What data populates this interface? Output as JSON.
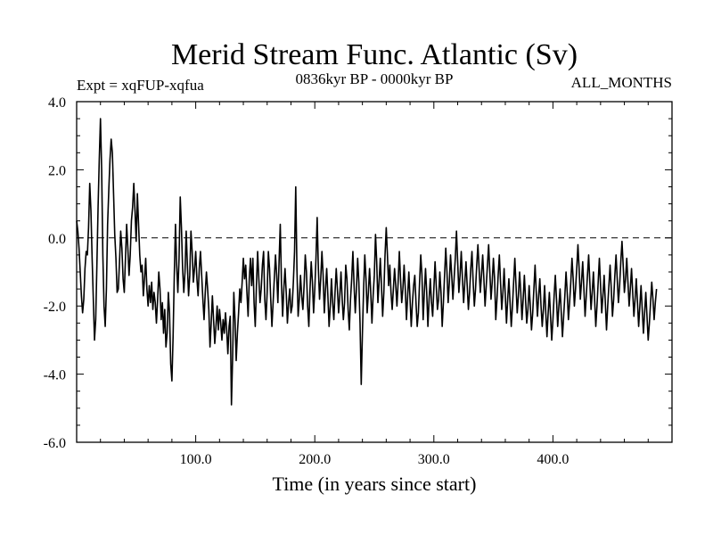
{
  "chart_data": {
    "type": "line",
    "title": "Merid Stream Func. Atlantic (Sv)",
    "subtitle_left": "Expt = xqFUP-xqfua",
    "subtitle_center": "0836kyr BP - 0000kyr BP",
    "subtitle_right": "ALL_MONTHS",
    "xlabel": "Time (in years since start)",
    "ylabel": "",
    "xlim": [
      0,
      500
    ],
    "ylim": [
      -6.0,
      4.0
    ],
    "x_ticks": [
      100,
      200,
      300,
      400
    ],
    "x_tick_labels": [
      "100.0",
      "200.0",
      "300.0",
      "400.0"
    ],
    "y_ticks": [
      -6,
      -4,
      -2,
      0,
      2,
      4
    ],
    "y_tick_labels": [
      "-6.0",
      "-4.0",
      "-2.0",
      "0.0",
      "2.0",
      "4.0"
    ],
    "reference_line": {
      "y": 0.0,
      "style": "dashed"
    },
    "grid": false,
    "series": [
      {
        "name": "Merid Stream Func. Atlantic",
        "color": "#000000",
        "x_start": 0,
        "x_step": 1,
        "values": [
          0.5,
          0.2,
          -0.3,
          -1.0,
          -1.7,
          -2.2,
          -1.8,
          -0.9,
          -0.4,
          -0.5,
          0.3,
          1.6,
          0.8,
          -0.6,
          -1.8,
          -3.0,
          -2.4,
          -0.8,
          0.9,
          2.3,
          3.5,
          2.0,
          -0.5,
          -2.0,
          -2.6,
          -1.5,
          0.4,
          1.4,
          2.3,
          2.9,
          2.5,
          1.3,
          0.1,
          -0.6,
          -1.6,
          -1.5,
          -0.7,
          0.2,
          -0.3,
          -1.2,
          -1.6,
          -0.6,
          0.4,
          -0.3,
          -1.1,
          -0.5,
          0.5,
          0.9,
          1.6,
          0.8,
          -0.1,
          1.3,
          0.4,
          -0.5,
          -1.0,
          -0.8,
          -1.7,
          -1.2,
          -0.6,
          -1.5,
          -2.0,
          -1.4,
          -1.9,
          -1.3,
          -2.1,
          -1.6,
          -1.9,
          -2.5,
          -1.8,
          -1.0,
          -1.5,
          -2.4,
          -1.9,
          -2.8,
          -2.1,
          -3.2,
          -2.8,
          -1.6,
          -2.2,
          -3.7,
          -4.2,
          -2.9,
          -1.1,
          0.4,
          -0.8,
          -1.6,
          -0.6,
          1.2,
          0.3,
          -0.9,
          -1.6,
          -1.0,
          0.2,
          -0.8,
          -1.7,
          -1.1,
          0.2,
          -0.4,
          -1.3,
          -0.9,
          -0.4,
          -1.2,
          -1.7,
          -0.9,
          -0.4,
          -1.1,
          -1.8,
          -2.4,
          -1.6,
          -1.0,
          -1.5,
          -2.1,
          -3.2,
          -2.5,
          -1.7,
          -2.4,
          -3.1,
          -2.6,
          -2.0,
          -2.7,
          -2.1,
          -2.5,
          -3.0,
          -2.4,
          -2.8,
          -2.2,
          -2.7,
          -3.4,
          -2.6,
          -2.3,
          -4.9,
          -3.5,
          -1.6,
          -2.4,
          -3.6,
          -2.8,
          -2.2,
          -1.5,
          -1.9,
          -1.3,
          -0.6,
          -1.2,
          -0.8,
          -1.6,
          -2.3,
          -1.2,
          -0.6,
          -1.4,
          -0.6,
          -1.9,
          -2.6,
          -1.4,
          -0.4,
          -1.2,
          -1.9,
          -1.5,
          -0.8,
          -0.4,
          -1.8,
          -2.4,
          -1.6,
          -0.4,
          -0.9,
          -1.8,
          -2.6,
          -1.9,
          -1.2,
          -0.5,
          -1.1,
          -1.9,
          -0.7,
          0.4,
          -1.3,
          -2.3,
          -1.5,
          -0.9,
          -1.6,
          -2.5,
          -1.9,
          -1.5,
          -2.2,
          -2.0,
          -1.3,
          -0.4,
          1.5,
          -0.9,
          -2.3,
          -1.8,
          -1.1,
          -1.7,
          -2.1,
          -1.4,
          -0.5,
          -1.0,
          -2.0,
          -2.6,
          -1.5,
          -0.7,
          -1.3,
          -2.2,
          -1.5,
          -0.6,
          0.6,
          -0.9,
          -1.8,
          -1.2,
          -0.4,
          -1.1,
          -2.2,
          -1.5,
          -0.9,
          -1.7,
          -2.6,
          -2.0,
          -1.2,
          -1.9,
          -2.4,
          -1.6,
          -0.9,
          -1.5,
          -2.2,
          -1.7,
          -1.0,
          -1.8,
          -2.4,
          -1.9,
          -0.8,
          -1.2,
          -2.1,
          -2.7,
          -1.8,
          -1.2,
          -0.4,
          -1.4,
          -2.2,
          -1.5,
          -0.6,
          -1.3,
          -2.5,
          -4.3,
          -2.8,
          -1.5,
          -0.5,
          -1.2,
          -2.2,
          -1.6,
          -0.9,
          -1.6,
          -2.5,
          -1.7,
          -1.1,
          0.1,
          -0.7,
          -1.9,
          -1.3,
          -0.6,
          -1.4,
          -2.3,
          -1.6,
          -0.5,
          0.3,
          -0.5,
          -1.4,
          -0.8,
          -1.6,
          -2.1,
          -1.5,
          -0.9,
          -1.4,
          -2.0,
          -1.3,
          -0.4,
          -1.2,
          -1.9,
          -1.5,
          -0.8,
          -1.5,
          -2.4,
          -1.7,
          -1.0,
          -1.8,
          -2.6,
          -1.9,
          -1.4,
          -1.1,
          -1.9,
          -2.6,
          -2.2,
          -1.3,
          -0.5,
          -1.1,
          -2.4,
          -1.6,
          -0.9,
          -1.6,
          -2.6,
          -1.8,
          -1.2,
          -1.9,
          -2.3,
          -1.5,
          -0.7,
          -1.4,
          -2.1,
          -1.8,
          -1.0,
          -1.6,
          -2.6,
          -1.9,
          -1.1,
          -0.3,
          -1.0,
          -1.9,
          -1.3,
          -0.5,
          -1.1,
          -1.8,
          -1.2,
          -0.6,
          0.2,
          -0.7,
          -1.6,
          -1.1,
          -0.4,
          -1.2,
          -1.9,
          -1.3,
          -0.7,
          -1.4,
          -2.1,
          -1.6,
          -0.9,
          -0.4,
          -1.3,
          -2.0,
          -1.5,
          -0.8,
          -0.2,
          -0.9,
          -1.6,
          -1.1,
          -0.5,
          -1.2,
          -2.0,
          -1.4,
          -0.8,
          -0.2,
          -1.0,
          -1.8,
          -1.3,
          -0.6,
          -1.2,
          -2.4,
          -1.8,
          -1.1,
          -0.5,
          -1.3,
          -2.1,
          -1.6,
          -0.9,
          -1.7,
          -2.5,
          -1.8,
          -1.2,
          -1.9,
          -2.6,
          -2.0,
          -1.3,
          -0.6,
          -1.4,
          -2.2,
          -1.7,
          -1.0,
          -1.6,
          -2.4,
          -1.8,
          -1.1,
          -1.8,
          -2.5,
          -2.1,
          -1.4,
          -2.0,
          -2.7,
          -2.2,
          -1.5,
          -0.8,
          -1.6,
          -2.3,
          -1.7,
          -1.2,
          -2.0,
          -2.6,
          -2.1,
          -1.4,
          -2.2,
          -2.9,
          -2.2,
          -1.6,
          -2.3,
          -3.0,
          -2.4,
          -1.7,
          -1.1,
          -1.8,
          -2.6,
          -2.0,
          -1.5,
          -2.2,
          -2.9,
          -2.3,
          -1.7,
          -1.0,
          -1.6,
          -2.4,
          -1.9,
          -1.3,
          -0.6,
          -1.2,
          -2.0,
          -1.5,
          -0.9,
          -0.2,
          -0.9,
          -1.8,
          -1.3,
          -0.7,
          -1.5,
          -2.3,
          -1.7,
          -1.1,
          -0.5,
          -1.3,
          -2.1,
          -1.6,
          -1.0,
          -1.8,
          -2.6,
          -2.0,
          -1.3,
          -0.6,
          -1.4,
          -2.2,
          -1.7,
          -1.1,
          -1.9,
          -2.7,
          -2.0,
          -1.4,
          -0.8,
          -1.5,
          -2.3,
          -1.8,
          -1.1,
          -0.5,
          -1.2,
          -1.9,
          -1.4,
          -0.7,
          -0.1,
          -0.8,
          -1.6,
          -1.2,
          -0.6,
          -1.3,
          -2.0,
          -1.5,
          -0.9,
          -1.6,
          -2.3,
          -1.8,
          -1.2,
          -1.9,
          -2.6,
          -2.0,
          -1.4,
          -2.1,
          -2.8,
          -2.2,
          -1.6,
          -2.3,
          -3.0,
          -2.5,
          -1.9,
          -1.3,
          -1.8,
          -2.4,
          -1.9,
          -1.5
        ]
      }
    ]
  }
}
